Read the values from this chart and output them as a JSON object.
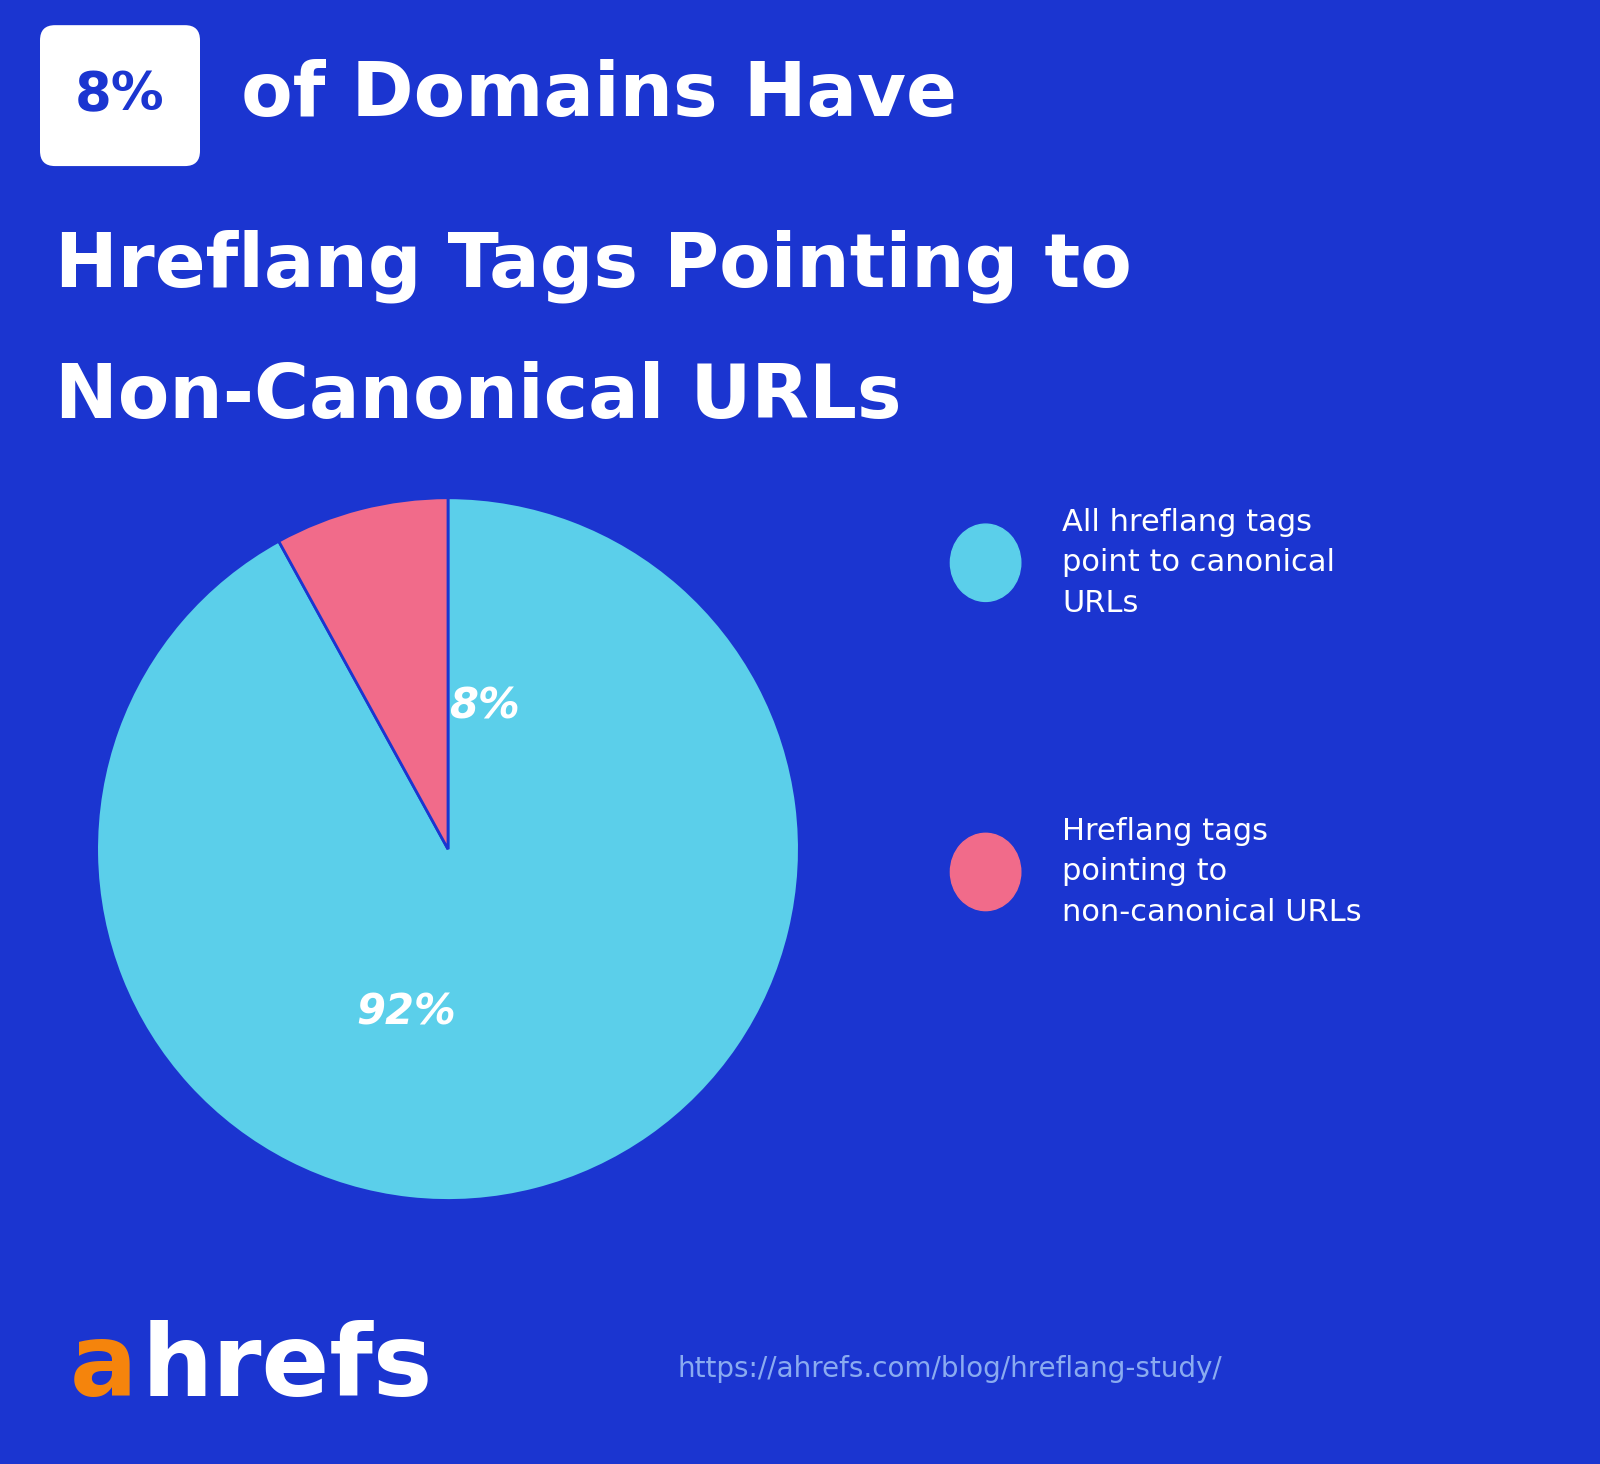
{
  "bg_color": "#1B35D0",
  "pie_values": [
    92,
    8
  ],
  "pie_colors": [
    "#5BCFEA",
    "#F16B8A"
  ],
  "pie_startangle": 90,
  "title_badge": "8%",
  "title_line1": " of Domains Have",
  "title_line2": "Hreflang Tags Pointing to",
  "title_line3": "Non-Canonical URLs",
  "title_color": "#FFFFFF",
  "title_badge_bg": "#FFFFFF",
  "title_badge_text_color": "#1B35D0",
  "legend_items": [
    {
      "label": "All hreflang tags\npoint to canonical\nURLs",
      "color": "#5BCFEA"
    },
    {
      "label": "Hreflang tags\npointing to\nnon-canonical URLs",
      "color": "#F16B8A"
    }
  ],
  "legend_text_color": "#FFFFFF",
  "label_92_color": "#FFFFFF",
  "label_8_color": "#FFFFFF",
  "label_fontsize": 30,
  "footer_logo_a_color": "#F5840C",
  "footer_logo_hrefs_color": "#FFFFFF",
  "footer_url_text": "https://ahrefs.com/blog/hreflang-study/",
  "footer_url_color": "#8AABF0"
}
